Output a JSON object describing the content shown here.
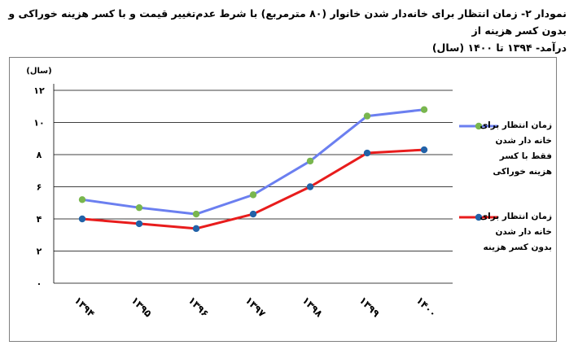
{
  "title": {
    "line1": "نمودار ۲- زمان انتظار برای خانه‌دار شدن خانوار (۸۰ مترمربع) با شرط عدم‌تغییر قیمت و با کسر هزینه خوراکی و بدون کسر هزینه از",
    "line2": "درآمد- ۱۳۹۴ تا ۱۴۰۰ (سال)"
  },
  "chart_data": {
    "type": "line",
    "unit_label": "(سال)",
    "categories": [
      "۱۳۹۴",
      "۱۳۹۵",
      "۱۳۹۶",
      "۱۳۹۷",
      "۱۳۹۸",
      "۱۳۹۹",
      "۱۴۰۰"
    ],
    "y_ticks": [
      {
        "value": 0,
        "label": "۰"
      },
      {
        "value": 2,
        "label": "۲"
      },
      {
        "value": 4,
        "label": "۴"
      },
      {
        "value": 6,
        "label": "۶"
      },
      {
        "value": 8,
        "label": "۸"
      },
      {
        "value": 10,
        "label": "۱۰"
      },
      {
        "value": 12,
        "label": "۱۲"
      }
    ],
    "ylim": [
      0,
      12
    ],
    "grid": true,
    "legend_position": "right",
    "series": [
      {
        "name_lines": [
          "زمان انتظار برای",
          "خانه دار شدن",
          "فقط با کسر",
          "هزینه خوراکی"
        ],
        "values": [
          5.2,
          4.7,
          4.3,
          5.5,
          7.6,
          10.4,
          10.8
        ],
        "line_color": "#6b7ff0",
        "marker_color": "#79b64e"
      },
      {
        "name_lines": [
          "زمان انتظار برای",
          "خانه دار شدن",
          "بدون کسر هزینه"
        ],
        "values": [
          4.0,
          3.7,
          3.4,
          4.3,
          6.0,
          8.1,
          8.3
        ],
        "line_color": "#e81c1c",
        "marker_color": "#2262a8"
      }
    ]
  }
}
